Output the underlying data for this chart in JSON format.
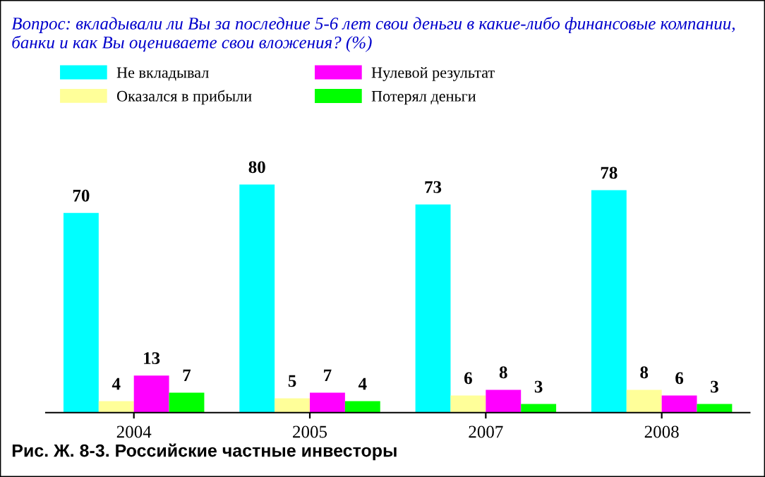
{
  "chart_data": {
    "type": "bar",
    "title": "Вопрос: вкладывали ли Вы за последние 5-6 лет свои деньги в какие-либо финансовые компании, банки и как Вы оцениваете свои вложения? (%)",
    "categories": [
      "2004",
      "2005",
      "2007",
      "2008"
    ],
    "series": [
      {
        "name": "Не вкладывал",
        "color": "#00ffff",
        "values": [
          70,
          80,
          73,
          78
        ]
      },
      {
        "name": "Оказался в прибыли",
        "color": "#ffff99",
        "values": [
          4,
          5,
          6,
          8
        ]
      },
      {
        "name": "Нулевой результат",
        "color": "#ff00ff",
        "values": [
          13,
          7,
          8,
          6
        ]
      },
      {
        "name": "Потерял деньги",
        "color": "#00ff00",
        "values": [
          7,
          4,
          3,
          3
        ]
      }
    ],
    "data_labels": true,
    "legend": "top left",
    "grid": false,
    "annotations": [
      "Рис. Ж. 8-3. Российские частные инвесторы"
    ]
  }
}
